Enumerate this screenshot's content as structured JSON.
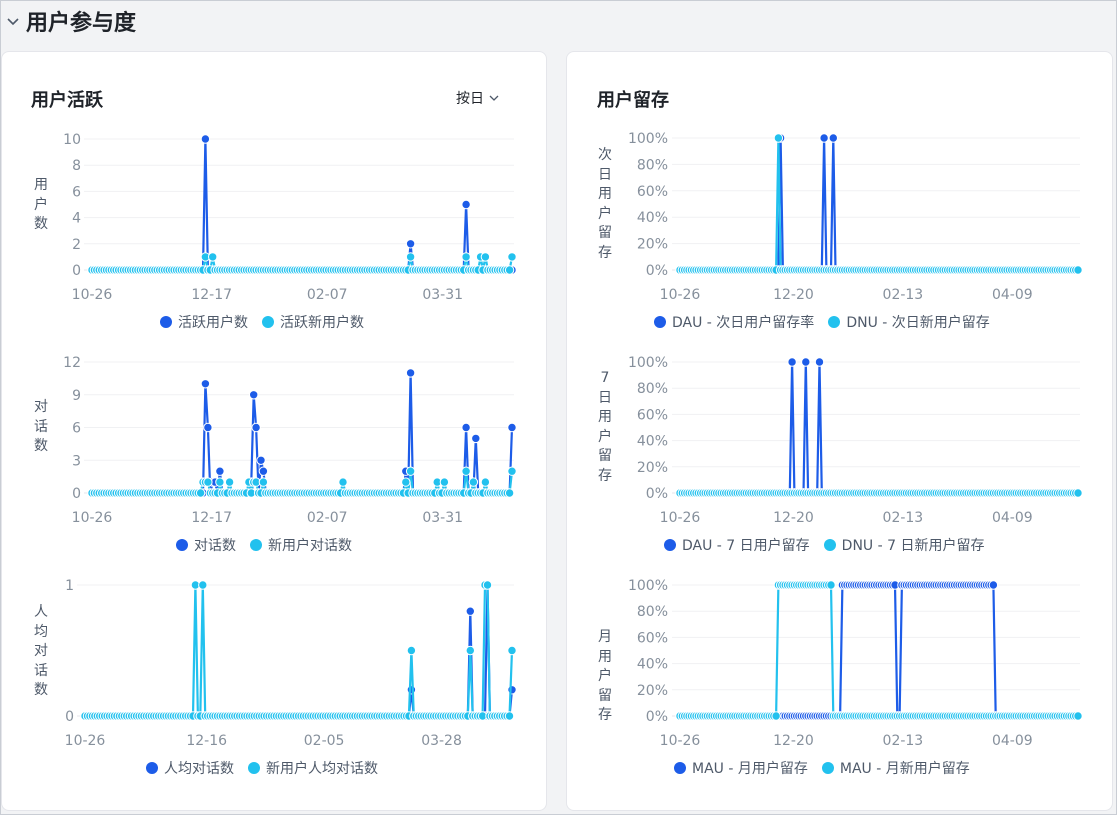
{
  "section": {
    "title": "用户参与度"
  },
  "left_card": {
    "title": "用户活跃",
    "granularity": "按日"
  },
  "right_card": {
    "title": "用户留存"
  },
  "colors": {
    "series1": "#1d5ce8",
    "series2": "#22c1ee"
  },
  "chart_data": [
    {
      "id": "active",
      "type": "line",
      "ylabel": "用户数",
      "y_ticks": [
        "10",
        "8",
        "6",
        "4",
        "2",
        "0"
      ],
      "x_ticks": [
        "10-26",
        "12-17",
        "02-07",
        "03-31"
      ],
      "ylim": [
        0,
        10
      ],
      "n_points": 175,
      "series": [
        {
          "name": "活跃用户数",
          "spikes": [
            [
              47,
              10
            ],
            [
              132,
              2
            ],
            [
              155,
              5
            ]
          ]
        },
        {
          "name": "活跃新用户数",
          "spikes": [
            [
              47,
              1
            ],
            [
              50,
              1
            ],
            [
              132,
              1
            ],
            [
              155,
              1
            ],
            [
              161,
              1
            ],
            [
              163,
              1
            ],
            [
              174,
              1
            ]
          ]
        }
      ]
    },
    {
      "id": "dialog",
      "type": "line",
      "ylabel": "对话数",
      "y_ticks": [
        "12",
        "9",
        "6",
        "3",
        "0"
      ],
      "x_ticks": [
        "10-26",
        "12-17",
        "02-07",
        "03-31"
      ],
      "ylim": [
        0,
        12
      ],
      "n_points": 175,
      "series": [
        {
          "name": "对话数",
          "spikes": [
            [
              47,
              10
            ],
            [
              48,
              6
            ],
            [
              50,
              1
            ],
            [
              51,
              1
            ],
            [
              53,
              2
            ],
            [
              66,
              1
            ],
            [
              67,
              9
            ],
            [
              68,
              6
            ],
            [
              70,
              3
            ],
            [
              71,
              2
            ],
            [
              130,
              2
            ],
            [
              132,
              11
            ],
            [
              155,
              6
            ],
            [
              159,
              5
            ],
            [
              174,
              6
            ]
          ]
        },
        {
          "name": "新用户对话数",
          "spikes": [
            [
              46,
              1
            ],
            [
              47,
              1
            ],
            [
              48,
              1
            ],
            [
              53,
              1
            ],
            [
              57,
              1
            ],
            [
              65,
              1
            ],
            [
              67,
              1
            ],
            [
              68,
              1
            ],
            [
              71,
              1
            ],
            [
              104,
              1
            ],
            [
              130,
              1
            ],
            [
              132,
              2
            ],
            [
              143,
              1
            ],
            [
              146,
              1
            ],
            [
              155,
              2
            ],
            [
              158,
              1
            ],
            [
              163,
              1
            ],
            [
              174,
              2
            ]
          ]
        }
      ]
    },
    {
      "id": "avg",
      "type": "line",
      "ylabel": "人均对话数",
      "y_ticks": [
        "1",
        "0"
      ],
      "x_ticks": [
        "10-26",
        "12-16",
        "02-05",
        "03-28"
      ],
      "ylim": [
        0,
        1
      ],
      "n_points": 175,
      "series": [
        {
          "name": "人均对话数",
          "spikes": [
            [
              133,
              0.2
            ],
            [
              157,
              0.8
            ],
            [
              164,
              1
            ],
            [
              174,
              0.2
            ]
          ]
        },
        {
          "name": "新用户人均对话数",
          "spikes": [
            [
              45,
              1
            ],
            [
              48,
              1
            ],
            [
              133,
              0.5
            ],
            [
              157,
              0.5
            ],
            [
              163,
              1
            ],
            [
              164,
              1
            ],
            [
              174,
              0.5
            ]
          ]
        }
      ]
    },
    {
      "id": "next_day",
      "type": "line",
      "ylabel": "次日用户留存",
      "y_ticks": [
        "100%",
        "80%",
        "60%",
        "40%",
        "20%",
        "0%"
      ],
      "x_ticks": [
        "10-26",
        "12-20",
        "02-13",
        "04-09"
      ],
      "ylim": [
        0,
        100
      ],
      "n_points": 175,
      "series": [
        {
          "name": "DAU - 次日用户留存率",
          "spikes": [
            [
              44,
              100
            ],
            [
              63,
              100
            ],
            [
              67,
              100
            ]
          ]
        },
        {
          "name": "DNU - 次日新用户留存",
          "spikes": [
            [
              43,
              100
            ]
          ]
        }
      ]
    },
    {
      "id": "week",
      "type": "line",
      "ylabel": "7日用户留存",
      "y_ticks": [
        "100%",
        "80%",
        "60%",
        "40%",
        "20%",
        "0%"
      ],
      "x_ticks": [
        "10-26",
        "12-20",
        "02-13",
        "04-09"
      ],
      "ylim": [
        0,
        100
      ],
      "n_points": 175,
      "series": [
        {
          "name": "DAU - 7 日用户留存",
          "spikes": [
            [
              49,
              100
            ],
            [
              55,
              100
            ],
            [
              61,
              100
            ]
          ]
        },
        {
          "name": "DNU - 7 日新用户留存",
          "spikes": []
        }
      ]
    },
    {
      "id": "month",
      "type": "line",
      "ylabel": "月用户留存",
      "y_ticks": [
        "100%",
        "80%",
        "60%",
        "40%",
        "20%",
        "0%"
      ],
      "x_ticks": [
        "10-26",
        "12-20",
        "02-13",
        "04-09"
      ],
      "ylim": [
        0,
        100
      ],
      "n_points": 175,
      "series": [
        {
          "name": "MAU - 月用户留存",
          "ranges": [
            [
              71,
              94,
              100
            ],
            [
              97,
              137,
              100
            ]
          ]
        },
        {
          "name": "MAU - 月新用户留存",
          "ranges": [
            [
              43,
              66,
              100
            ]
          ]
        }
      ]
    }
  ]
}
